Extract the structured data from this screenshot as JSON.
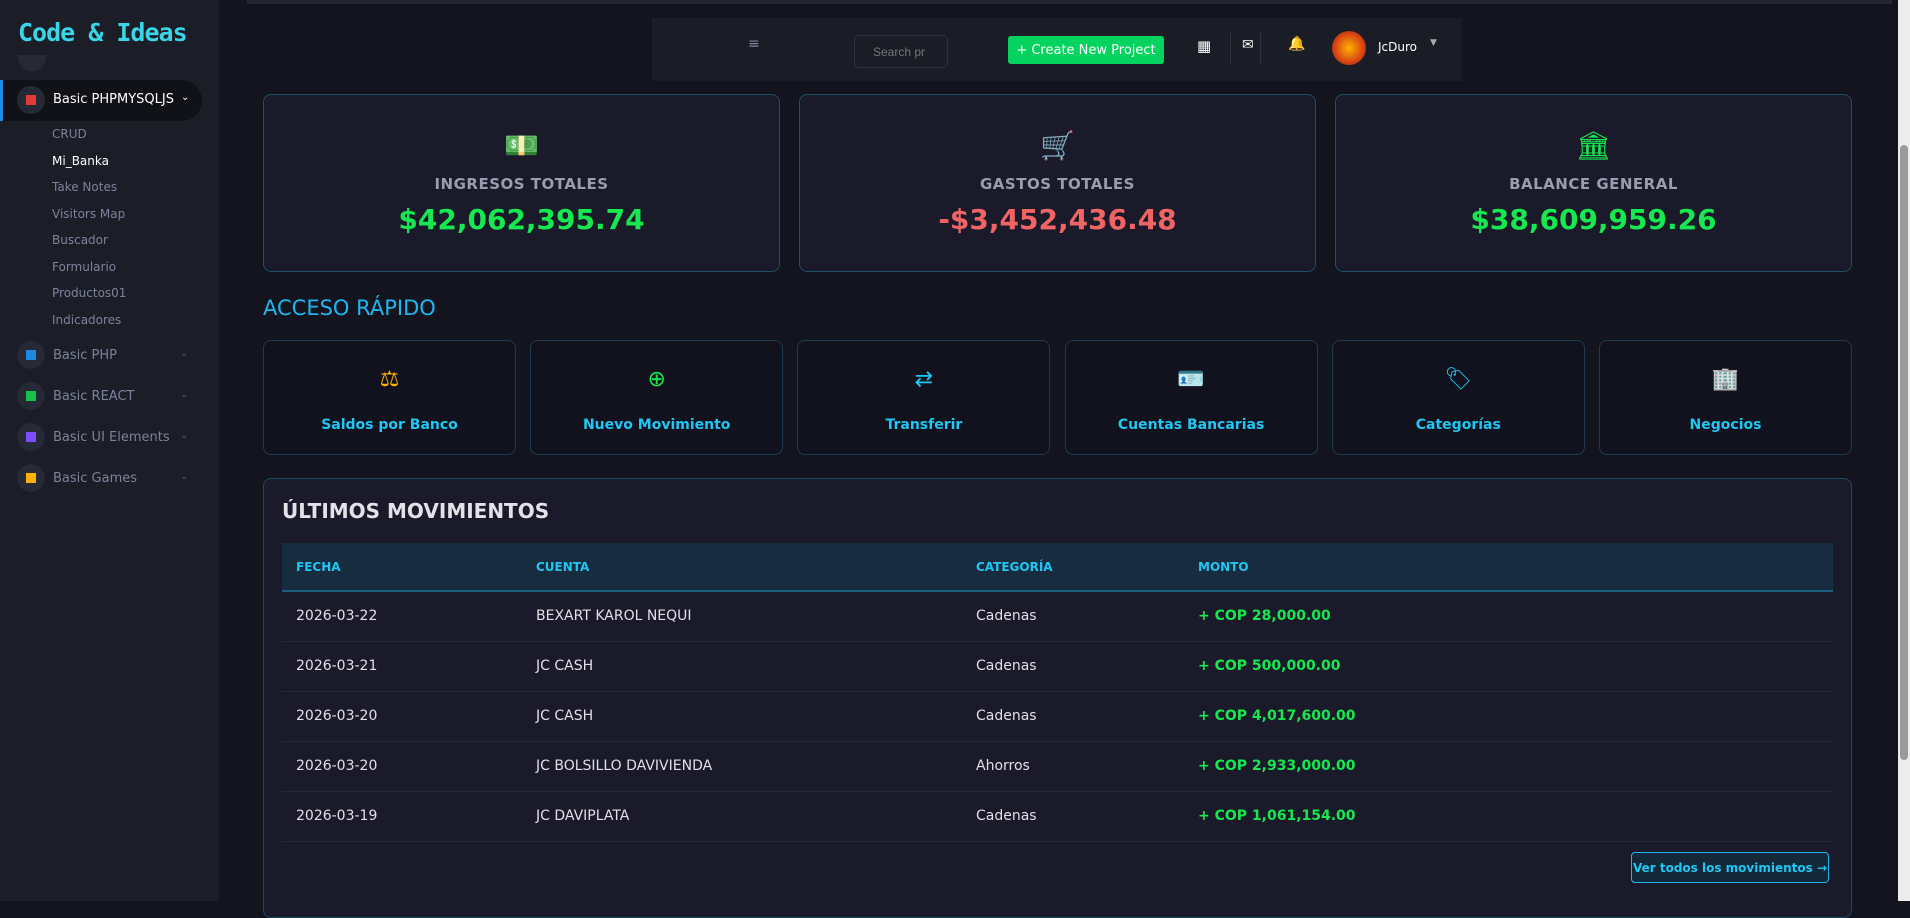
{
  "sidebar": {
    "logo": "Code & Ideas",
    "active_group": "Basic PHPMYSQLJS",
    "sub_items": [
      "CRUD",
      "Mi_Banka",
      "Take Notes",
      "Visitors Map",
      "Buscador",
      "Formulario",
      "Productos01",
      "Indicadores"
    ],
    "active_sub": "Mi_Banka",
    "groups": [
      {
        "label": "Basic PHP",
        "color": "#1e88e5"
      },
      {
        "label": "Basic REACT",
        "color": "#16c24a"
      },
      {
        "label": "Basic UI Elements",
        "color": "#7c4dff"
      },
      {
        "label": "Basic Games",
        "color": "#ffb300"
      }
    ]
  },
  "navbar": {
    "menu_icon": "hamburger-icon",
    "search_placeholder": "Search pr",
    "create_label": "+ Create New Project",
    "user": "JcDuro"
  },
  "stats": [
    {
      "label": "INGRESOS TOTALES",
      "value": "$42,062,395.74",
      "color": "#16e84f",
      "icon": "money-icon"
    },
    {
      "label": "GASTOS TOTALES",
      "value": "-$3,452,436.48",
      "color": "#f26464",
      "icon": "cart-icon"
    },
    {
      "label": "BALANCE GENERAL",
      "value": "$38,609,959.26",
      "color": "#16e84f",
      "icon": "bank-icon"
    }
  ],
  "quick": {
    "title": "ACCESO RÁPIDO",
    "items": [
      {
        "label": "Saldos por Banco",
        "icon": "⚖",
        "color": "#ffb300"
      },
      {
        "label": "Nuevo Movimiento",
        "icon": "⊕",
        "color": "#16e84f"
      },
      {
        "label": "Transferir",
        "icon": "⇄",
        "color": "#1fc7f2"
      },
      {
        "label": "Cuentas Bancarias",
        "icon": "🪪",
        "color": "#1fc7f2"
      },
      {
        "label": "Categorías",
        "icon": "🏷",
        "color": "#1fc7f2"
      },
      {
        "label": "Negocios",
        "icon": "🏢",
        "color": "#1fc7f2"
      }
    ]
  },
  "movimientos": {
    "title": "ÚLTIMOS MOVIMIENTOS",
    "headers": [
      "FECHA",
      "CUENTA",
      "CATEGORÍA",
      "MONTO"
    ],
    "rows": [
      [
        "2026-03-22",
        "BEXART KAROL NEQUI",
        "Cadenas",
        "+ COP 28,000.00"
      ],
      [
        "2026-03-21",
        "JC CASH",
        "Cadenas",
        "+ COP 500,000.00"
      ],
      [
        "2026-03-20",
        "JC CASH",
        "Cadenas",
        "+ COP 4,017,600.00"
      ],
      [
        "2026-03-20",
        "JC BOLSILLO DAVIVIENDA",
        "Ahorros",
        "+ COP 2,933,000.00"
      ],
      [
        "2026-03-19",
        "JC DAVIPLATA",
        "Cadenas",
        "+ COP 1,061,154.00"
      ]
    ],
    "view_all": "Ver todos los movimientos →"
  }
}
